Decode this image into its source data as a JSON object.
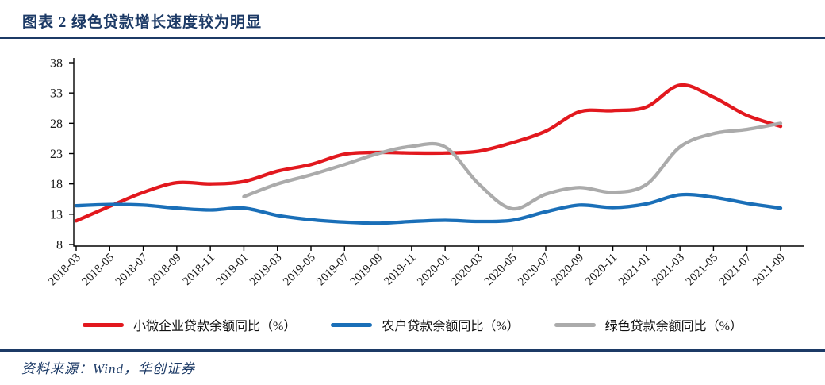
{
  "header": {
    "title": "图表 2 绿色贷款增长速度较为明显"
  },
  "footer": {
    "source": "资料来源：Wind，华创证券"
  },
  "theme": {
    "navy": "#1c3a66",
    "axis_color": "#000000",
    "tick_label_color": "#1a1a1a"
  },
  "chart_data": {
    "type": "line",
    "title": "图表 2 绿色贷款增长速度较为明显",
    "smoothed": true,
    "grid": false,
    "legend_position": "bottom",
    "xlabel": "",
    "ylabel": "",
    "ylim": [
      8,
      38
    ],
    "ytick_step": 5,
    "categories": [
      "2018-03",
      "2018-05",
      "2018-07",
      "2018-09",
      "2018-11",
      "2019-01",
      "2019-03",
      "2019-05",
      "2019-07",
      "2019-09",
      "2019-11",
      "2020-01",
      "2020-03",
      "2020-05",
      "2020-07",
      "2020-09",
      "2020-11",
      "2021-01",
      "2021-03",
      "2021-05",
      "2021-07",
      "2021-09"
    ],
    "series": [
      {
        "name": "小微企业贷款余额同比（%）",
        "color": "#e2181e",
        "values": [
          11.9,
          14.3,
          16.6,
          18.2,
          18.0,
          18.4,
          20.1,
          21.2,
          22.9,
          23.2,
          23.1,
          23.1,
          23.4,
          24.8,
          26.7,
          29.9,
          30.1,
          30.7,
          34.3,
          32.3,
          29.3,
          27.5
        ]
      },
      {
        "name": "农户贷款余额同比（%）",
        "color": "#1a6fb8",
        "values": [
          14.4,
          14.6,
          14.5,
          14.0,
          13.7,
          14.0,
          12.8,
          12.1,
          11.7,
          11.5,
          11.8,
          12.0,
          11.8,
          12.0,
          13.4,
          14.5,
          14.1,
          14.7,
          16.2,
          15.8,
          14.8,
          14.0
        ]
      },
      {
        "name": "绿色贷款余额同比（%）",
        "color": "#ababab",
        "values": [
          null,
          null,
          null,
          null,
          null,
          15.9,
          18.0,
          19.5,
          21.2,
          23.0,
          24.2,
          24.1,
          18.0,
          13.9,
          16.3,
          17.4,
          16.6,
          17.9,
          24.1,
          26.3,
          27.0,
          28.0
        ]
      }
    ]
  }
}
